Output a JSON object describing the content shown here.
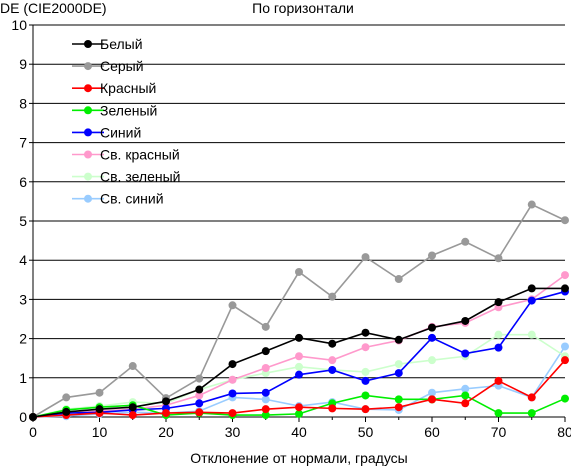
{
  "chart_data": {
    "type": "line",
    "title": "По горизонтали",
    "ylabel": "DE (CIE2000DE)",
    "xlabel": "Отклонение от нормали, градусы",
    "x": [
      0,
      5,
      10,
      15,
      20,
      25,
      30,
      35,
      40,
      45,
      50,
      55,
      60,
      65,
      70,
      75,
      80
    ],
    "xlim": [
      0,
      80
    ],
    "xticks": [
      0,
      10,
      20,
      30,
      40,
      50,
      60,
      70,
      80
    ],
    "ylim": [
      0,
      10
    ],
    "yticks": [
      0,
      1,
      2,
      3,
      4,
      5,
      6,
      7,
      8,
      9,
      10
    ],
    "grid": "horizontal",
    "legend_position": "top-left",
    "series": [
      {
        "name": "Белый",
        "color": "#000000",
        "values": [
          0,
          0.13,
          0.2,
          0.25,
          0.4,
          0.7,
          1.35,
          1.68,
          2.02,
          1.87,
          2.15,
          1.97,
          2.28,
          2.45,
          2.93,
          3.28,
          3.28
        ]
      },
      {
        "name": "Серый",
        "color": "#999999",
        "values": [
          0,
          0.5,
          0.62,
          1.3,
          0.48,
          0.98,
          2.85,
          2.3,
          3.7,
          3.07,
          4.08,
          3.52,
          4.12,
          4.47,
          4.05,
          5.42,
          5.02
        ]
      },
      {
        "name": "Красный",
        "color": "#ff0000",
        "values": [
          0,
          0.05,
          0.1,
          0.05,
          0.1,
          0.12,
          0.1,
          0.2,
          0.25,
          0.22,
          0.2,
          0.25,
          0.45,
          0.35,
          0.92,
          0.5,
          1.45
        ]
      },
      {
        "name": "Зеленый",
        "color": "#00ee00",
        "values": [
          0,
          0.18,
          0.25,
          0.3,
          0.05,
          0.1,
          0.05,
          0.05,
          0.08,
          0.35,
          0.55,
          0.45,
          0.45,
          0.55,
          0.1,
          0.1,
          0.47
        ]
      },
      {
        "name": "Синий",
        "color": "#0000ff",
        "values": [
          0,
          0.1,
          0.12,
          0.18,
          0.22,
          0.35,
          0.6,
          0.62,
          1.08,
          1.2,
          0.92,
          1.12,
          2.02,
          1.62,
          1.77,
          2.97,
          3.2
        ]
      },
      {
        "name": "Св. красный",
        "color": "#ff99cc",
        "values": [
          0,
          0.1,
          0.15,
          0.2,
          0.3,
          0.55,
          0.95,
          1.25,
          1.55,
          1.45,
          1.78,
          1.95,
          2.3,
          2.4,
          2.8,
          3.0,
          3.62
        ]
      },
      {
        "name": "Св. зеленый",
        "color": "#ccffcc",
        "values": [
          0,
          0.2,
          0.28,
          0.38,
          0.35,
          0.7,
          0.95,
          1.12,
          1.28,
          1.2,
          1.15,
          1.35,
          1.45,
          1.55,
          2.1,
          2.1,
          1.55
        ]
      },
      {
        "name": "Св. синий",
        "color": "#99ccff",
        "values": [
          0,
          0.02,
          0.08,
          0.12,
          0.1,
          0.15,
          0.5,
          0.45,
          0.28,
          0.38,
          0.2,
          0.18,
          0.62,
          0.72,
          0.8,
          0.5,
          1.8
        ]
      }
    ]
  }
}
